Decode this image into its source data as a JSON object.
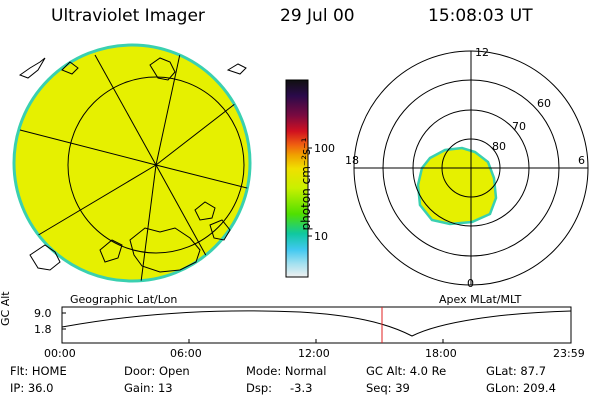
{
  "header": {
    "title": "Ultraviolet Imager",
    "date": "29 Jul 00",
    "time": "15:08:03 UT"
  },
  "colorbar": {
    "unit_label": "photon cm⁻²s⁻¹",
    "tick_high": "100",
    "tick_low": "10"
  },
  "left_panel": {
    "caption": "Geographic Lat/Lon"
  },
  "right_panel": {
    "caption": "Apex MLat/MLT",
    "mlt_labels": {
      "top": "12",
      "left": "18",
      "right": "6",
      "bottom": "0"
    },
    "lat_labels": [
      "60",
      "70",
      "80"
    ]
  },
  "timeline": {
    "ylabel": "GC Alt",
    "ytick_top": "9.0",
    "ytick_bottom": "1.8",
    "xticks": [
      "00:00",
      "06:00",
      "12:00",
      "18:00",
      "23:59"
    ],
    "marker_time": "15:08:03"
  },
  "status": {
    "flt": "Flt: HOME",
    "ip": "IP: 36.0",
    "door": "Door: Open",
    "gain": "Gain: 13",
    "mode": "Mode: Normal",
    "dsp_label": "Dsp:",
    "dsp_value": "-3.3",
    "gc_alt": "GC Alt: 4.0 Re",
    "seq": "Seq: 39",
    "glat": "GLat:  87.7",
    "glon": "GLon: 209.4"
  },
  "colors": {
    "image_fill": "#e6f000",
    "image_edge": "#3ad0b0",
    "marker_line": "#e02020",
    "colorbar_stops": [
      "#101010",
      "#2a0a4a",
      "#7a0a40",
      "#d01020",
      "#f06010",
      "#f0a000",
      "#f0e000",
      "#c8f000",
      "#50e000",
      "#10c8a0",
      "#40c8f0",
      "#a0e0f0",
      "#f0f0f0"
    ]
  }
}
